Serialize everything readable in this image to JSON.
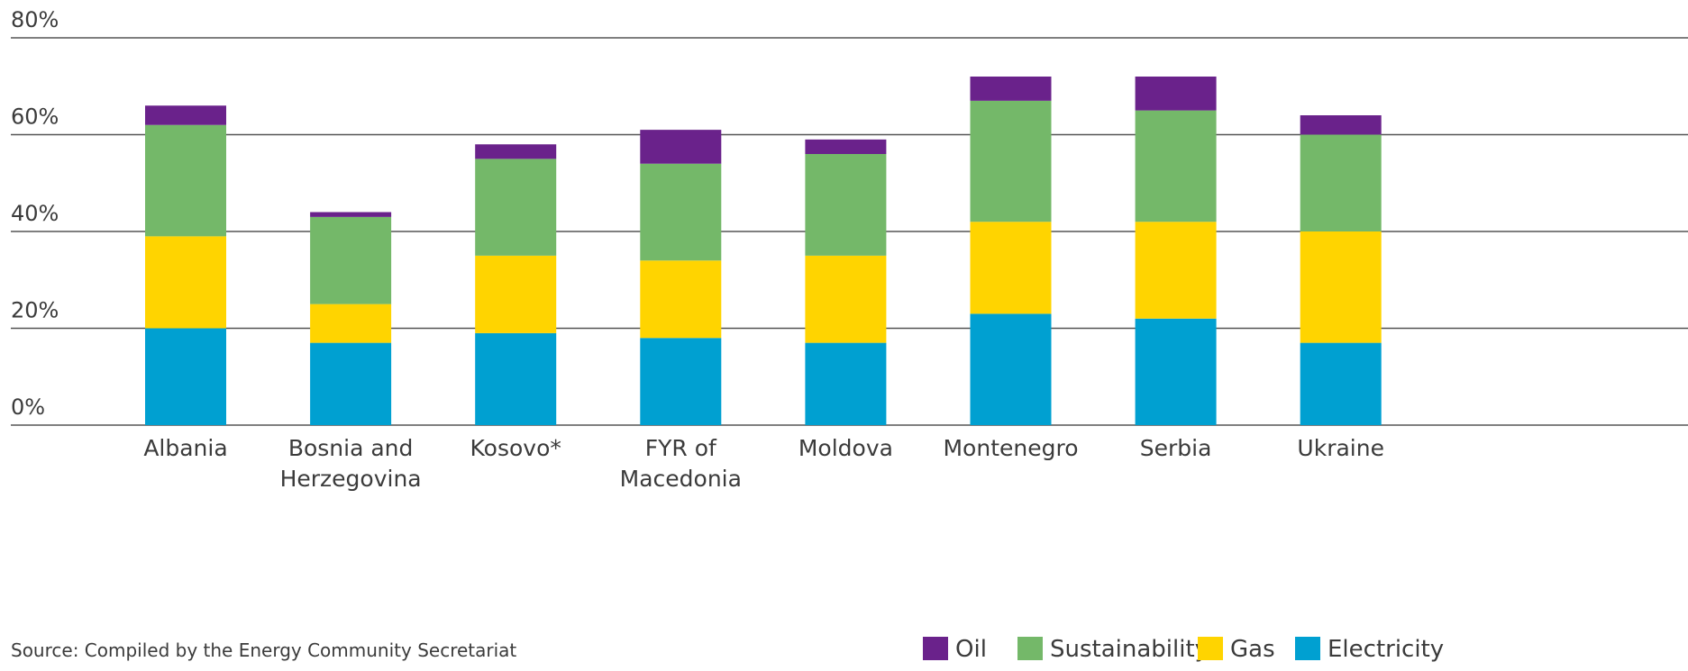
{
  "chart_data": {
    "type": "bar",
    "stacked": true,
    "categories": [
      [
        "Albania"
      ],
      [
        "Bosnia and",
        "Herzegovina"
      ],
      [
        "Kosovo*"
      ],
      [
        "FYR of",
        "Macedonia"
      ],
      [
        "Moldova"
      ],
      [
        "Montenegro"
      ],
      [
        "Serbia"
      ],
      [
        "Ukraine"
      ]
    ],
    "series": [
      {
        "name": "Electricity",
        "color": "#00a0d1",
        "values": [
          20,
          17,
          19,
          18,
          17,
          23,
          22,
          17
        ]
      },
      {
        "name": "Gas",
        "color": "#ffd400",
        "values": [
          19,
          8,
          16,
          16,
          18,
          19,
          20,
          23
        ]
      },
      {
        "name": "Sustainability",
        "color": "#74b869",
        "values": [
          23,
          18,
          20,
          20,
          21,
          25,
          23,
          20
        ]
      },
      {
        "name": "Oil",
        "color": "#6a228b",
        "values": [
          4,
          1,
          3,
          7,
          3,
          5,
          7,
          4
        ]
      }
    ],
    "legend_order": [
      "Oil",
      "Sustainability",
      "Gas",
      "Electricity"
    ],
    "ylim": [
      0,
      80
    ],
    "yticks": [
      0,
      20,
      40,
      60,
      80
    ],
    "ytick_labels": [
      "0%",
      "20%",
      "40%",
      "60%",
      "80%"
    ],
    "grid": true,
    "legend_position": "bottom-right"
  },
  "source": "Source: Compiled by the Energy Community Secretariat"
}
